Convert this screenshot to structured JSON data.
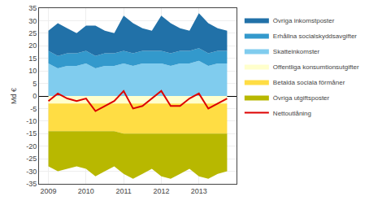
{
  "chart_data": {
    "type": "area",
    "stacked": true,
    "ylabel": "Md €",
    "x": [
      2009.0,
      2009.25,
      2009.5,
      2009.75,
      2010.0,
      2010.25,
      2010.5,
      2010.75,
      2011.0,
      2011.25,
      2011.5,
      2011.75,
      2012.0,
      2012.25,
      2012.5,
      2012.75,
      2013.0,
      2013.25,
      2013.5,
      2013.75
    ],
    "xlim": [
      2008.75,
      2014.0
    ],
    "xticks": [
      2009,
      2010,
      2011,
      2012,
      2013
    ],
    "ylim": [
      -35,
      35
    ],
    "yticks": [
      -35,
      -30,
      -25,
      -20,
      -15,
      -10,
      -5,
      0,
      5,
      10,
      15,
      20,
      25,
      30,
      35
    ],
    "grid": true,
    "legend": "right",
    "series": [
      {
        "name": "Övriga inkomstposter",
        "color": "#2171a8",
        "values": [
          8,
          13,
          10,
          8,
          10,
          12,
          9,
          8,
          14,
          12,
          9,
          8,
          14,
          12,
          9,
          8,
          14,
          12,
          9,
          8
        ]
      },
      {
        "name": "Erhållna socialskyddsavgifter",
        "color": "#3399cc",
        "values": [
          5,
          5,
          5,
          5,
          5,
          5,
          5,
          5,
          5,
          5,
          5,
          5,
          5,
          5,
          5,
          5,
          5,
          5,
          5,
          5
        ]
      },
      {
        "name": "Skatteinkomster",
        "color": "#80ccee",
        "values": [
          13,
          11,
          12,
          12,
          13,
          11,
          12,
          12,
          13,
          12,
          13,
          13,
          13,
          12,
          13,
          13,
          14,
          12,
          13,
          13
        ]
      },
      {
        "name": "Offentliga konsumtionsutgifter",
        "color": "#ffffcc",
        "values": [
          -3,
          -3,
          -3,
          -3,
          -3,
          -3,
          -3,
          -3,
          -3,
          -3,
          -3,
          -3,
          -3,
          -3,
          -3,
          -3,
          -3,
          -3,
          -3,
          -3
        ]
      },
      {
        "name": "Betalda sociala förmåner",
        "color": "#ffdd44",
        "values": [
          -11,
          -11,
          -11,
          -11,
          -11,
          -11,
          -11,
          -11,
          -12,
          -12,
          -12,
          -12,
          -12,
          -12,
          -12,
          -12,
          -12,
          -12,
          -12,
          -12
        ]
      },
      {
        "name": "Övriga utgiftsposter",
        "color": "#b8b800",
        "values": [
          -14,
          -16,
          -15,
          -14,
          -15,
          -18,
          -16,
          -14,
          -16,
          -18,
          -16,
          -14,
          -17,
          -18,
          -16,
          -14,
          -17,
          -18,
          -16,
          -15
        ]
      },
      {
        "name": "Nettoutlåning",
        "type": "line",
        "color": "#dd0000",
        "values": [
          -2,
          1,
          -1,
          -2,
          -1,
          -6,
          -4,
          -2,
          2,
          -5,
          -4,
          -1,
          2,
          -4,
          -4,
          -1,
          1,
          -5,
          -3,
          -1
        ]
      }
    ]
  }
}
